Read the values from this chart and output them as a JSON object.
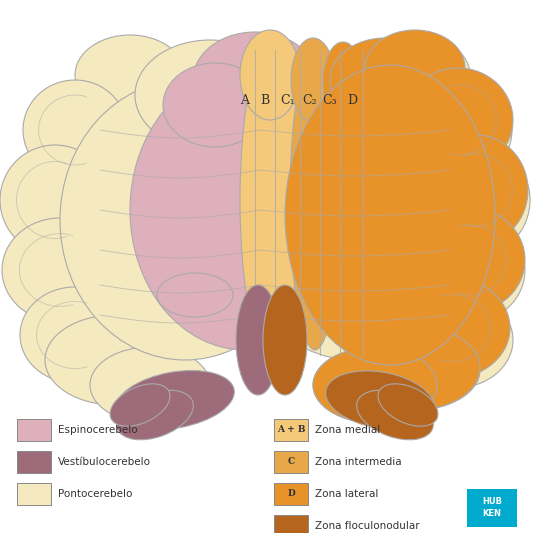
{
  "bg_color": "#ffffff",
  "colors": {
    "pontocerebelo": "#f5eabf",
    "espinocerebelo": "#ddb0bc",
    "vestibulocerebelo": "#9e6b7a",
    "zona_medial": "#f5c97a",
    "zona_intermedia": "#e8a84a",
    "zona_lateral": "#e8922a",
    "zona_floculonodular": "#b5651d",
    "outline": "#aaaaaa",
    "kenhub_blue": "#00aacc",
    "text": "#333333"
  },
  "legend_left": [
    {
      "label": "Espinocerebelo",
      "color": "#ddb0bc"
    },
    {
      "label": "Vestíbulocerebelo",
      "color": "#9e6b7a"
    },
    {
      "label": "Pontocerebelo",
      "color": "#f5eabf"
    }
  ],
  "legend_right": [
    {
      "label": "A + B",
      "sublabel": "Zona medial",
      "color": "#f5c97a"
    },
    {
      "label": "C",
      "sublabel": "Zona intermedia",
      "color": "#e8a84a"
    },
    {
      "label": "D",
      "sublabel": "Zona lateral",
      "color": "#e8922a"
    },
    {
      "label": "",
      "sublabel": "Zona floculonodular",
      "color": "#b5651d"
    }
  ],
  "zone_labels": [
    "A",
    "B",
    "C₁",
    "C₂",
    "C₃",
    "D"
  ]
}
